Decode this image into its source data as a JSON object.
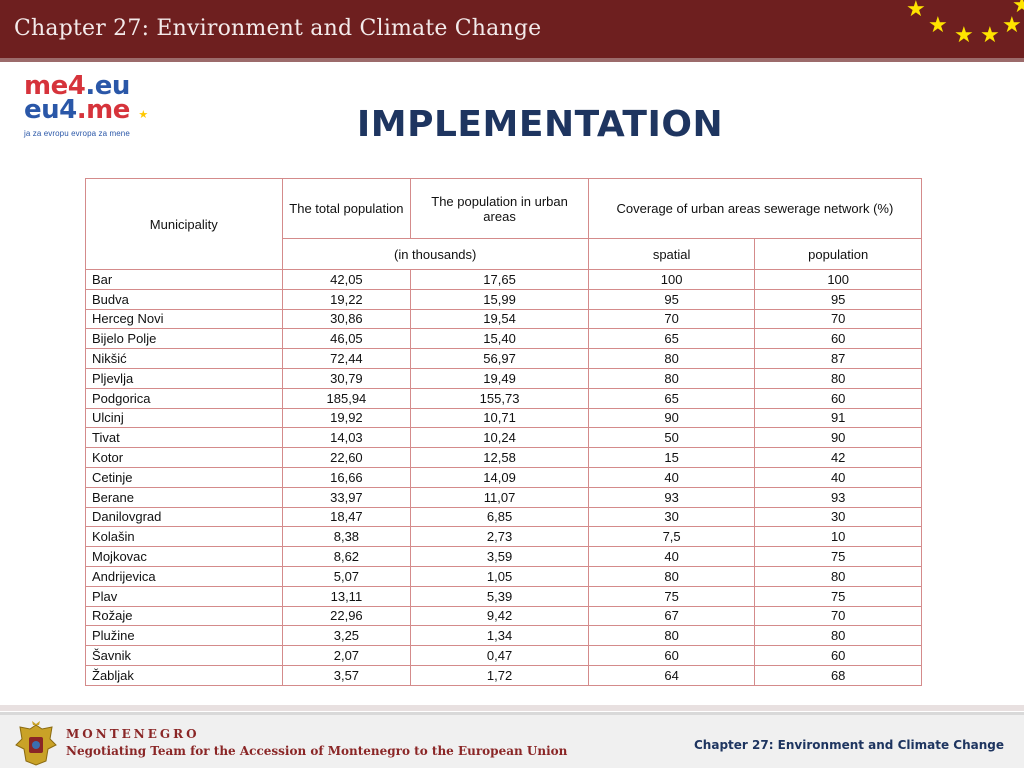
{
  "header": {
    "title": "Chapter 27: Environment and Climate Change"
  },
  "logo": {
    "line1_a": "me4",
    "line1_b": ".eu",
    "line2_a": "eu4",
    "line2_b": ".me",
    "tagline": "ja za evropu evropa za mene"
  },
  "slide": {
    "heading": "IMPLEMENTATION"
  },
  "table": {
    "headers": {
      "municipality": "Municipality",
      "total_population": "The total population",
      "urban_population": "The population in urban areas",
      "coverage": "Coverage of urban areas sewerage network (%)",
      "in_thousands": "(in thousands)",
      "spatial": "spatial",
      "population": "population"
    },
    "rows": [
      {
        "municipality": "Bar",
        "total": "42,05",
        "urban": "17,65",
        "spatial": "100",
        "population": "100"
      },
      {
        "municipality": "Budva",
        "total": "19,22",
        "urban": "15,99",
        "spatial": "95",
        "population": "95"
      },
      {
        "municipality": "Herceg Novi",
        "total": "30,86",
        "urban": "19,54",
        "spatial": "70",
        "population": "70"
      },
      {
        "municipality": "Bijelo Polje",
        "total": "46,05",
        "urban": "15,40",
        "spatial": "65",
        "population": "60"
      },
      {
        "municipality": "Nikšić",
        "total": "72,44",
        "urban": "56,97",
        "spatial": "80",
        "population": "87"
      },
      {
        "municipality": "Pljevlja",
        "total": "30,79",
        "urban": "19,49",
        "spatial": "80",
        "population": "80"
      },
      {
        "municipality": "Podgorica",
        "total": "185,94",
        "urban": "155,73",
        "spatial": "65",
        "population": "60"
      },
      {
        "municipality": "Ulcinj",
        "total": "19,92",
        "urban": "10,71",
        "spatial": "90",
        "population": "91"
      },
      {
        "municipality": "Tivat",
        "total": "14,03",
        "urban": "10,24",
        "spatial": "50",
        "population": "90"
      },
      {
        "municipality": "Kotor",
        "total": "22,60",
        "urban": "12,58",
        "spatial": "15",
        "population": "42"
      },
      {
        "municipality": "Cetinje",
        "total": "16,66",
        "urban": "14,09",
        "spatial": "40",
        "population": "40"
      },
      {
        "municipality": "Berane",
        "total": "33,97",
        "urban": "11,07",
        "spatial": "93",
        "population": "93"
      },
      {
        "municipality": "Danilovgrad",
        "total": "18,47",
        "urban": "6,85",
        "spatial": "30",
        "population": "30"
      },
      {
        "municipality": "Kolašin",
        "total": "8,38",
        "urban": "2,73",
        "spatial": "7,5",
        "population": "10"
      },
      {
        "municipality": "Mojkovac",
        "total": "8,62",
        "urban": "3,59",
        "spatial": "40",
        "population": "75"
      },
      {
        "municipality": "Andrijevica",
        "total": "5,07",
        "urban": "1,05",
        "spatial": "80",
        "population": "80"
      },
      {
        "municipality": "Plav",
        "total": "13,11",
        "urban": "5,39",
        "spatial": "75",
        "population": "75"
      },
      {
        "municipality": "Rožaje",
        "total": "22,96",
        "urban": "9,42",
        "spatial": "67",
        "population": "70"
      },
      {
        "municipality": "Plužine",
        "total": "3,25",
        "urban": "1,34",
        "spatial": "80",
        "population": "80"
      },
      {
        "municipality": "Šavnik",
        "total": "2,07",
        "urban": "0,47",
        "spatial": "60",
        "population": "60"
      },
      {
        "municipality": "Žabljak",
        "total": "3,57",
        "urban": "1,72",
        "spatial": "64",
        "population": "68"
      }
    ]
  },
  "footer": {
    "country": "MONTENEGRO",
    "team": "Negotiating Team for the Accession of  Montenegro to the European Union",
    "chapter": "Chapter 27:  Environment and Climate Change"
  },
  "colors": {
    "header_bg": "#6e1f1f",
    "heading": "#1e3560",
    "table_border": "#d48b8b",
    "footer_text": "#8a2626",
    "stars": "#ffe400"
  }
}
